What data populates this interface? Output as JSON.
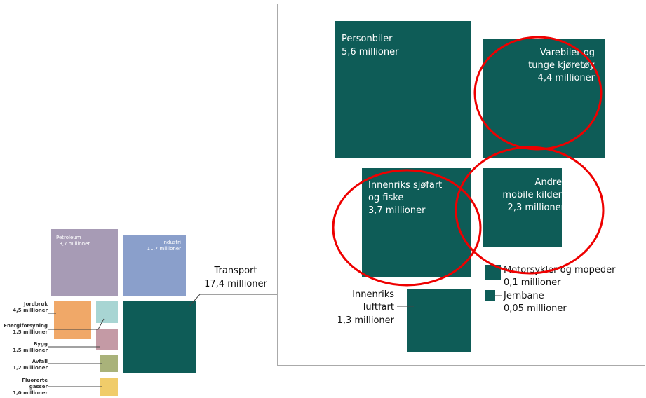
{
  "left": [
    {
      "name": "Petroleum",
      "value": "13,7 millioner"
    },
    {
      "name": "Industri",
      "value": "11,7 millioner"
    },
    {
      "name": "Jordbruk",
      "value": "4,5 millioner"
    },
    {
      "name": "Energiforsyning",
      "value": "1,5 millioner"
    },
    {
      "name": "Bygg",
      "value": "1,5 millioner"
    },
    {
      "name": "Avfall",
      "value": "1,2 millioner"
    },
    {
      "name": "Fluorerte",
      "name2": "gasser",
      "value": "1,0 millioner"
    }
  ],
  "transport": {
    "name": "Transport",
    "value": "17,4 millioner"
  },
  "right": [
    {
      "lines": [
        "Personbiler",
        "5,6 millioner"
      ]
    },
    {
      "lines": [
        "Varebiler og",
        "tunge kjøretøy",
        "4,4 millioner"
      ]
    },
    {
      "lines": [
        "Innenriks sjøfart",
        "og fiske",
        "3,7 millioner"
      ]
    },
    {
      "lines": [
        "Andre",
        "mobile kilder",
        "2,3 millioner"
      ]
    },
    {
      "lines": [
        "Motorsykler og mopeder",
        "0,1 millioner"
      ]
    },
    {
      "lines": [
        "Jernbane",
        "0,05 millioner"
      ]
    },
    {
      "lines": [
        "Innenriks",
        "luftfart",
        "1,3 millioner"
      ]
    }
  ]
}
